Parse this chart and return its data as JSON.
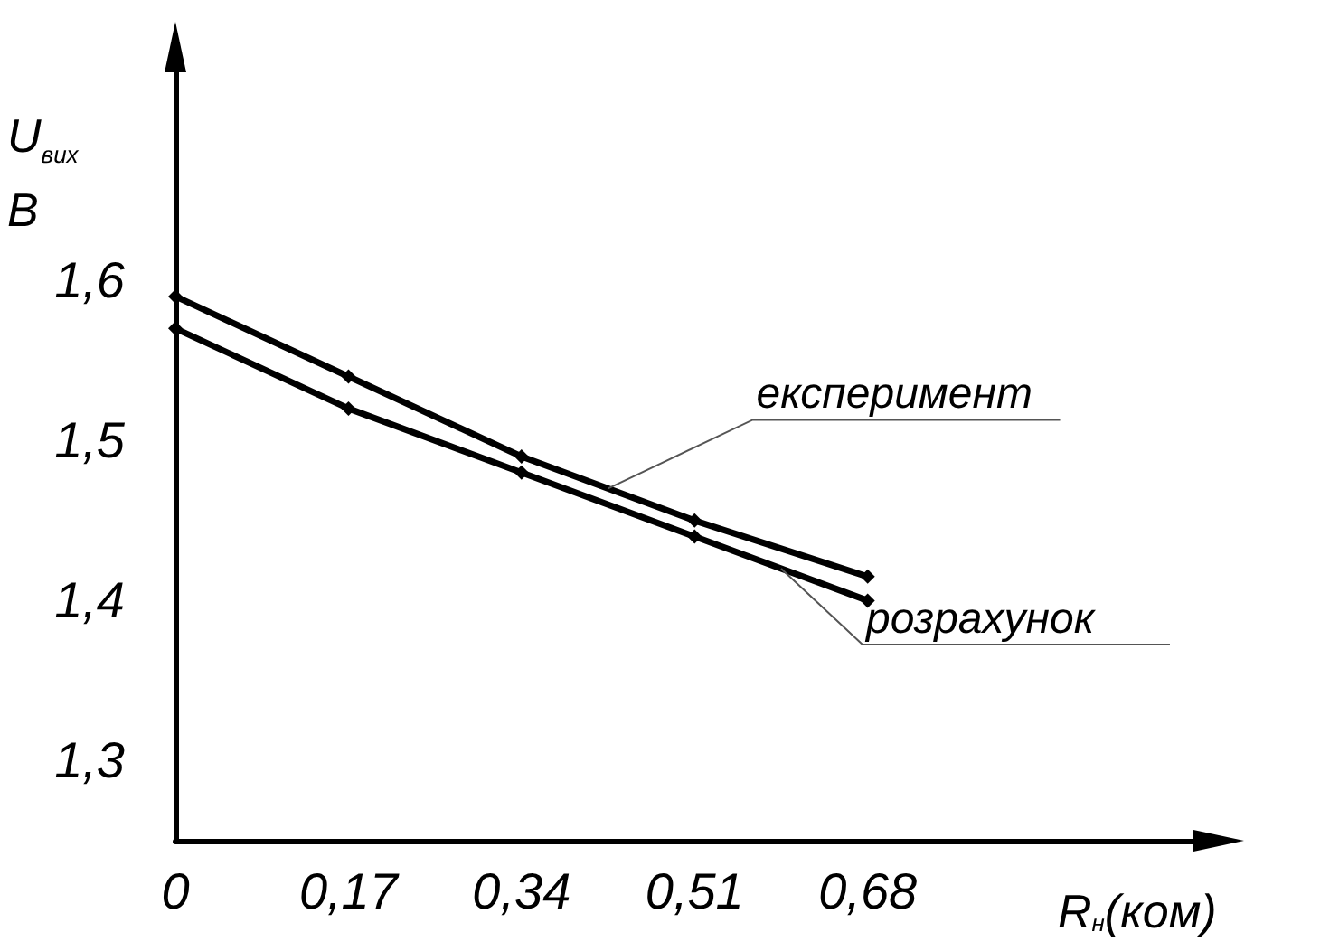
{
  "chart_data": {
    "type": "line",
    "xlabel": "R$_{н}$(ком)",
    "ylabel": "U$_{вих}$\nВ",
    "x": [
      0,
      0.17,
      0.34,
      0.51,
      0.68
    ],
    "series": [
      {
        "name": "експеримент",
        "color": "#000000",
        "values": [
          1.59,
          1.54,
          1.49,
          1.45,
          1.415
        ]
      },
      {
        "name": "розрахунок",
        "color": "#000000",
        "values": [
          1.57,
          1.52,
          1.48,
          1.44,
          1.4
        ]
      }
    ],
    "xlim": [
      0,
      1.0
    ],
    "xticks": [
      {
        "value": 0,
        "label": "0"
      },
      {
        "value": 0.17,
        "label": "0,17"
      },
      {
        "value": 0.34,
        "label": "0,34"
      },
      {
        "value": 0.51,
        "label": "0,51"
      },
      {
        "value": 0.68,
        "label": "0,68"
      }
    ],
    "ylim": [
      1.25,
      1.73
    ],
    "yticks": [
      {
        "value": 1.3,
        "label": "1,3"
      },
      {
        "value": 1.4,
        "label": "1,4"
      },
      {
        "value": 1.5,
        "label": "1,5"
      },
      {
        "value": 1.6,
        "label": "1,6"
      }
    ],
    "grid": false,
    "legend": false,
    "marker": "diamond",
    "line_style": "solid"
  }
}
